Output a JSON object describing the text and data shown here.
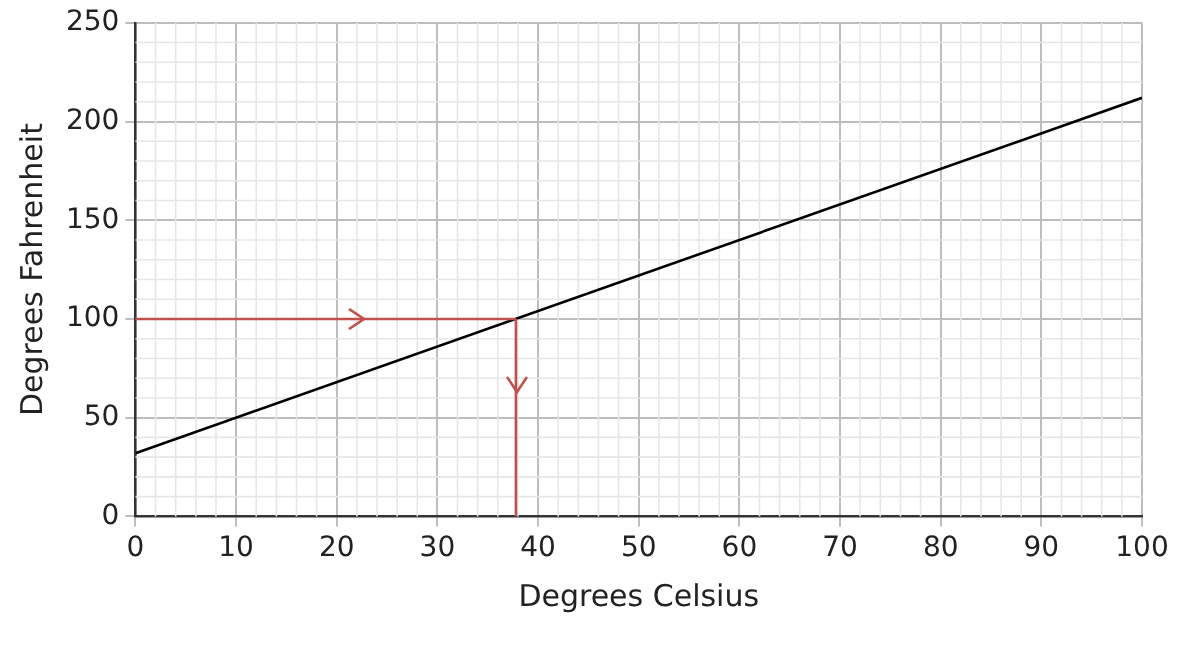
{
  "chart_data": {
    "type": "line",
    "xlabel": "Degrees Celsius",
    "ylabel": "Degrees Fahrenheit",
    "x": [
      0,
      100
    ],
    "series": [
      {
        "color": "#000000",
        "values": [
          32,
          212
        ]
      }
    ],
    "xlim": [
      0,
      100
    ],
    "xticks": [
      0,
      10,
      20,
      30,
      40,
      50,
      60,
      70,
      80,
      90,
      100
    ],
    "ylim": [
      0,
      250
    ],
    "yticks": [
      0,
      50,
      100,
      150,
      200,
      250
    ],
    "grid": true,
    "legend": false,
    "marker": "none",
    "line_style": "solid",
    "ref_lines": [
      {
        "axis": "y",
        "value": 100,
        "color": "#c0504d"
      },
      {
        "axis": "x",
        "value": 37.8,
        "color": "#c0504d"
      }
    ]
  }
}
